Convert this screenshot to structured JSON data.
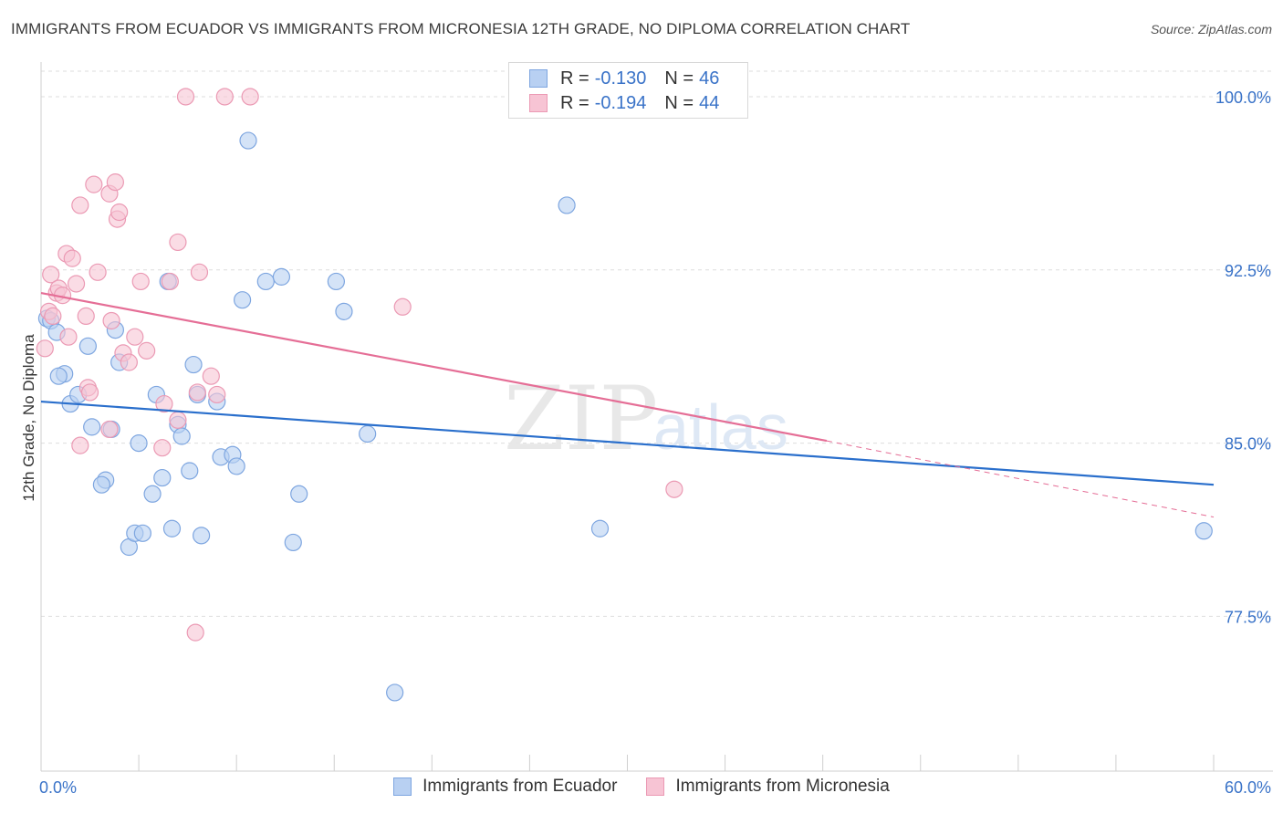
{
  "header": {
    "title": "IMMIGRANTS FROM ECUADOR VS IMMIGRANTS FROM MICRONESIA 12TH GRADE, NO DIPLOMA CORRELATION CHART",
    "source": "Source: ZipAtlas.com"
  },
  "legend": {
    "r_label": "R =",
    "n_label": "N =",
    "rows": [
      {
        "r": "-0.130",
        "n": "46"
      },
      {
        "r": "-0.194",
        "n": "44"
      }
    ]
  },
  "bottom_legend": {
    "items": [
      "Immigrants from Ecuador",
      "Immigrants from Micronesia"
    ]
  },
  "watermark": {
    "zip": "ZIP",
    "atlas": "atlas"
  },
  "colors": {
    "ecuador_fill": "#b8d0f2",
    "ecuador_stroke": "#7ea6e0",
    "ecuador_line": "#2a6fcc",
    "micronesia_fill": "#f7c4d4",
    "micronesia_stroke": "#eb9ab4",
    "micronesia_line": "#e56e96",
    "tick_label": "#3a73c8",
    "grid": "#dedede"
  },
  "chart_data": {
    "type": "scatter",
    "title": "IMMIGRANTS FROM ECUADOR VS IMMIGRANTS FROM MICRONESIA 12TH GRADE, NO DIPLOMA CORRELATION CHART",
    "xlabel": "",
    "ylabel": "12th Grade, No Diploma",
    "xlim": [
      0,
      60
    ],
    "ylim": [
      70.8,
      101.5
    ],
    "x_tick_labels": [
      "0.0%",
      "60.0%"
    ],
    "y_ticks": [
      77.5,
      85.0,
      92.5,
      100.0
    ],
    "y_tick_labels": [
      "77.5%",
      "85.0%",
      "92.5%",
      "100.0%"
    ],
    "grid": "horizontal dashed",
    "legend_position": "top-center",
    "series": [
      {
        "name": "Immigrants from Ecuador",
        "r": -0.13,
        "n": 46,
        "trend": {
          "x": [
            0,
            60
          ],
          "y": [
            86.8,
            83.2
          ]
        },
        "points": [
          [
            10.6,
            98.1
          ],
          [
            26.9,
            95.3
          ],
          [
            0.3,
            90.4
          ],
          [
            0.5,
            90.3
          ],
          [
            0.8,
            89.8
          ],
          [
            1.2,
            88.0
          ],
          [
            1.5,
            86.7
          ],
          [
            1.9,
            87.1
          ],
          [
            2.4,
            89.2
          ],
          [
            2.6,
            85.7
          ],
          [
            3.3,
            83.4
          ],
          [
            3.1,
            83.2
          ],
          [
            3.6,
            85.6
          ],
          [
            3.8,
            89.9
          ],
          [
            4.0,
            88.5
          ],
          [
            4.5,
            80.5
          ],
          [
            4.8,
            81.1
          ],
          [
            5.0,
            85.0
          ],
          [
            5.2,
            81.1
          ],
          [
            5.7,
            82.8
          ],
          [
            5.9,
            87.1
          ],
          [
            6.2,
            83.5
          ],
          [
            6.5,
            92.0
          ],
          [
            6.7,
            81.3
          ],
          [
            7.0,
            85.8
          ],
          [
            7.2,
            85.3
          ],
          [
            7.6,
            83.8
          ],
          [
            7.8,
            88.4
          ],
          [
            8.0,
            87.1
          ],
          [
            8.2,
            81.0
          ],
          [
            9.0,
            86.8
          ],
          [
            9.2,
            84.4
          ],
          [
            9.8,
            84.5
          ],
          [
            10.0,
            84.0
          ],
          [
            10.3,
            91.2
          ],
          [
            11.5,
            92.0
          ],
          [
            12.3,
            92.2
          ],
          [
            12.9,
            80.7
          ],
          [
            13.2,
            82.8
          ],
          [
            15.1,
            92.0
          ],
          [
            15.5,
            90.7
          ],
          [
            16.7,
            85.4
          ],
          [
            18.1,
            74.2
          ],
          [
            28.6,
            81.3
          ],
          [
            59.5,
            81.2
          ],
          [
            0.9,
            87.9
          ]
        ]
      },
      {
        "name": "Immigrants from Micronesia",
        "r": -0.194,
        "n": 44,
        "trend": {
          "x": [
            0,
            40.2
          ],
          "y": [
            91.5,
            85.1
          ]
        },
        "trend_extension": {
          "x": [
            40.2,
            60
          ],
          "y": [
            85.1,
            81.8
          ]
        },
        "points": [
          [
            7.4,
            100.0
          ],
          [
            9.4,
            100.0
          ],
          [
            10.7,
            100.0
          ],
          [
            2.0,
            95.3
          ],
          [
            2.7,
            96.2
          ],
          [
            3.5,
            95.8
          ],
          [
            3.8,
            96.3
          ],
          [
            3.9,
            94.7
          ],
          [
            4.0,
            95.0
          ],
          [
            7.0,
            93.7
          ],
          [
            1.3,
            93.2
          ],
          [
            1.6,
            93.0
          ],
          [
            0.5,
            92.3
          ],
          [
            1.8,
            91.9
          ],
          [
            2.9,
            92.4
          ],
          [
            5.1,
            92.0
          ],
          [
            6.6,
            92.0
          ],
          [
            8.1,
            92.4
          ],
          [
            0.8,
            91.5
          ],
          [
            0.9,
            91.7
          ],
          [
            0.4,
            90.7
          ],
          [
            2.3,
            90.5
          ],
          [
            3.6,
            90.3
          ],
          [
            1.4,
            89.6
          ],
          [
            4.8,
            89.6
          ],
          [
            0.2,
            89.1
          ],
          [
            4.2,
            88.9
          ],
          [
            5.4,
            89.0
          ],
          [
            4.5,
            88.5
          ],
          [
            8.7,
            87.9
          ],
          [
            2.4,
            87.4
          ],
          [
            2.5,
            87.2
          ],
          [
            8.0,
            87.2
          ],
          [
            9.0,
            87.1
          ],
          [
            6.3,
            86.7
          ],
          [
            7.0,
            86.0
          ],
          [
            3.5,
            85.6
          ],
          [
            2.0,
            84.9
          ],
          [
            6.2,
            84.8
          ],
          [
            18.5,
            90.9
          ],
          [
            32.4,
            83.0
          ],
          [
            7.9,
            76.8
          ],
          [
            0.6,
            90.5
          ],
          [
            1.1,
            91.4
          ]
        ]
      }
    ]
  }
}
